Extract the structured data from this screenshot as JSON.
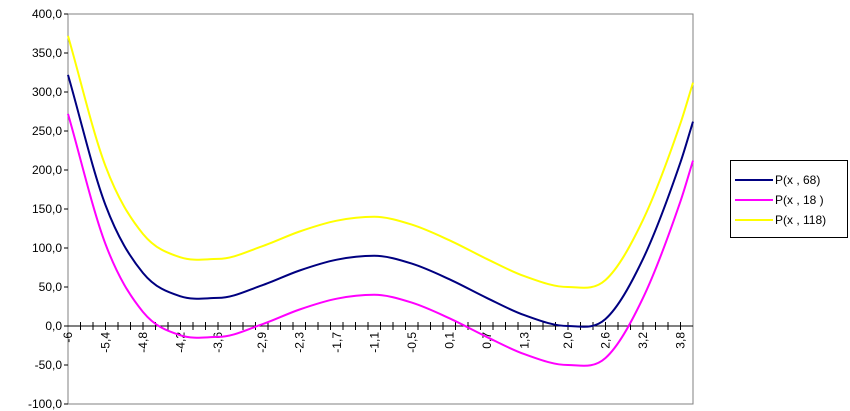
{
  "chart_data": {
    "type": "line",
    "title": "",
    "xlabel": "",
    "ylabel": "",
    "ylim": [
      -100,
      400
    ],
    "y_ticks": [
      -100,
      -50,
      0,
      50,
      100,
      150,
      200,
      250,
      300,
      350,
      400
    ],
    "y_tick_labels": [
      "-100,0",
      "-50,0",
      "0,0",
      "50,0",
      "100,0",
      "150,0",
      "200,0",
      "250,0",
      "300,0",
      "350,0",
      "400,0"
    ],
    "x_range": [
      -6,
      4
    ],
    "x_tick_values": [
      -6,
      -5.4,
      -4.8,
      -4.2,
      -3.6,
      -2.9,
      -2.3,
      -1.7,
      -1.1,
      -0.5,
      0.1,
      0.7,
      1.3,
      2.0,
      2.6,
      3.2,
      3.8
    ],
    "x_tick_labels": [
      "-6",
      "-5,4",
      "-4,8",
      "-4,2",
      "-3,6",
      "-2,9",
      "-2,3",
      "-1,7",
      "-1,1",
      "-0,5",
      "0,1",
      "0,7",
      "1,3",
      "2,0",
      "2,6",
      "3,2",
      "3,8"
    ],
    "x_minor_step": 0.2,
    "grid": false,
    "legend_position": "right",
    "x": [
      -6.0,
      -5.4,
      -4.8,
      -4.2,
      -3.6,
      -2.9,
      -2.3,
      -1.7,
      -1.1,
      -0.5,
      0.1,
      0.7,
      1.3,
      2.0,
      2.6,
      3.2,
      3.8,
      4.0
    ],
    "series": [
      {
        "name": "P(x , 68)",
        "color": "#000080",
        "values": [
          322,
          155,
          68,
          38,
          36,
          52,
          71,
          85,
          90,
          80,
          60,
          36,
          14,
          0,
          9,
          86,
          210,
          262
        ]
      },
      {
        "name": "P(x , 18 )",
        "color": "#ff00ff",
        "values": [
          272,
          105,
          18,
          -12,
          -14,
          2,
          21,
          35,
          40,
          30,
          10,
          -14,
          -36,
          -50,
          -41,
          36,
          160,
          212
        ]
      },
      {
        "name": "P(x , 118)",
        "color": "#ffff00",
        "values": [
          372,
          205,
          118,
          88,
          86,
          102,
          121,
          135,
          140,
          130,
          110,
          86,
          64,
          50,
          59,
          136,
          260,
          312
        ]
      }
    ]
  }
}
